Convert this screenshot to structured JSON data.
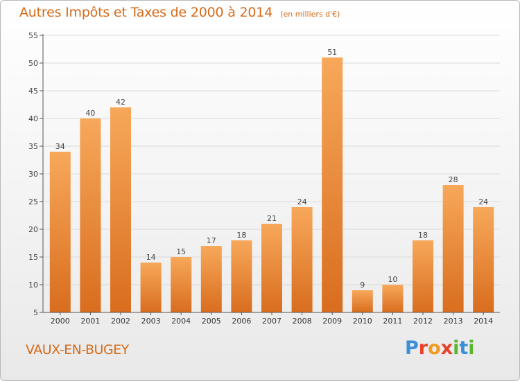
{
  "header": {
    "title": "Autres Impôts et Taxes de 2000 à 2014",
    "unit": "(en milliers d'€)"
  },
  "footer": {
    "commune": "VAUX-EN-BUGEY",
    "logo_letters": [
      "P",
      "r",
      "o",
      "x",
      "i",
      "t",
      "i"
    ],
    "logo_colors": [
      "#3a8fd8",
      "#e8412b",
      "#f29b1f",
      "#e8412b",
      "#5cb531",
      "#3a8fd8",
      "#5cb531"
    ]
  },
  "colors": {
    "bar_light": "#f7a85a",
    "bar_dark": "#d96d1e",
    "text_accent": "#d46b1a",
    "axis": "#555555"
  },
  "chart_data": {
    "type": "bar",
    "title": "Autres Impôts et Taxes de 2000 à 2014",
    "xlabel": "",
    "ylabel": "",
    "categories": [
      "2000",
      "2001",
      "2002",
      "2003",
      "2004",
      "2005",
      "2006",
      "2007",
      "2008",
      "2009",
      "2010",
      "2011",
      "2012",
      "2013",
      "2014"
    ],
    "values": [
      34,
      40,
      42,
      14,
      15,
      17,
      18,
      21,
      24,
      51,
      9,
      10,
      18,
      28,
      24
    ],
    "ylim": [
      5,
      55
    ],
    "yticks": [
      "5",
      "10",
      "15",
      "20",
      "25",
      "30",
      "35",
      "40",
      "45",
      "50",
      "55"
    ]
  }
}
